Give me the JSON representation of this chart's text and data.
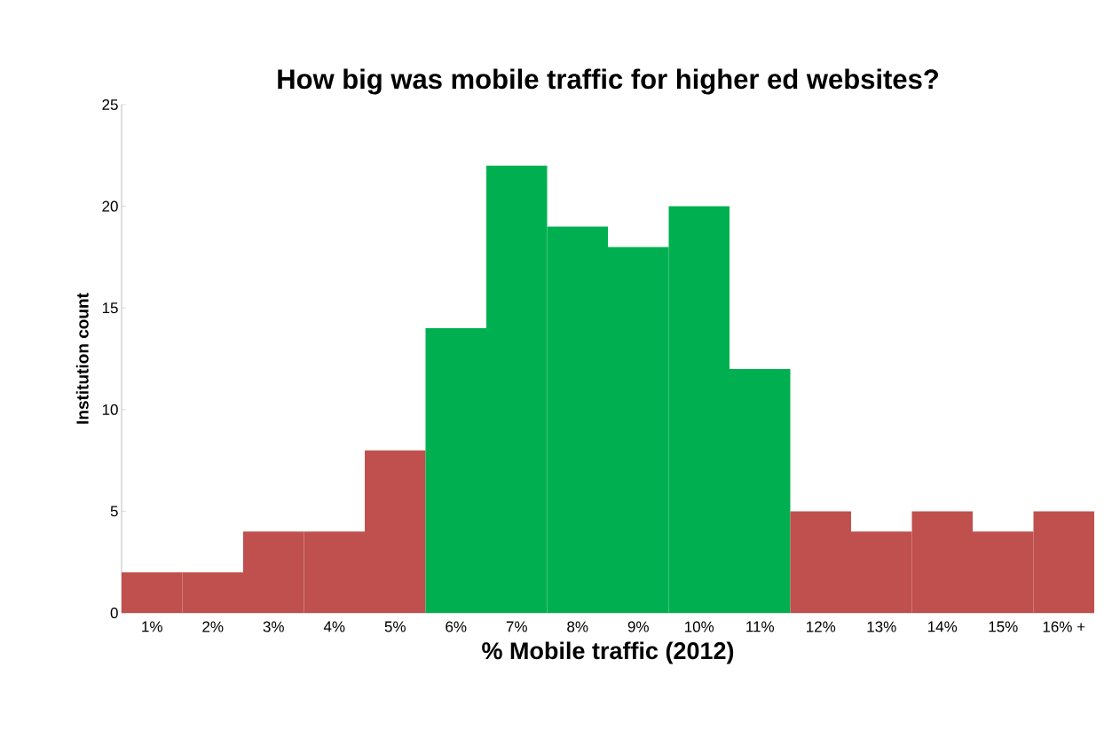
{
  "chart_data": {
    "type": "bar",
    "title": "How big was mobile traffic for higher ed websites?",
    "xlabel": "% Mobile traffic (2012)",
    "ylabel": "Institution count",
    "categories": [
      "1%",
      "2%",
      "3%",
      "4%",
      "5%",
      "6%",
      "7%",
      "8%",
      "9%",
      "10%",
      "11%",
      "12%",
      "13%",
      "14%",
      "15%",
      "16% +"
    ],
    "values": [
      2,
      2,
      4,
      4,
      8,
      14,
      22,
      19,
      18,
      20,
      12,
      5,
      4,
      5,
      4,
      5
    ],
    "colors": [
      "#c0504d",
      "#c0504d",
      "#c0504d",
      "#c0504d",
      "#c0504d",
      "#00b050",
      "#00b050",
      "#00b050",
      "#00b050",
      "#00b050",
      "#00b050",
      "#c0504d",
      "#c0504d",
      "#c0504d",
      "#c0504d",
      "#c0504d"
    ],
    "ylim": [
      0,
      25
    ],
    "yticks": [
      0,
      5,
      10,
      15,
      20,
      25
    ]
  }
}
